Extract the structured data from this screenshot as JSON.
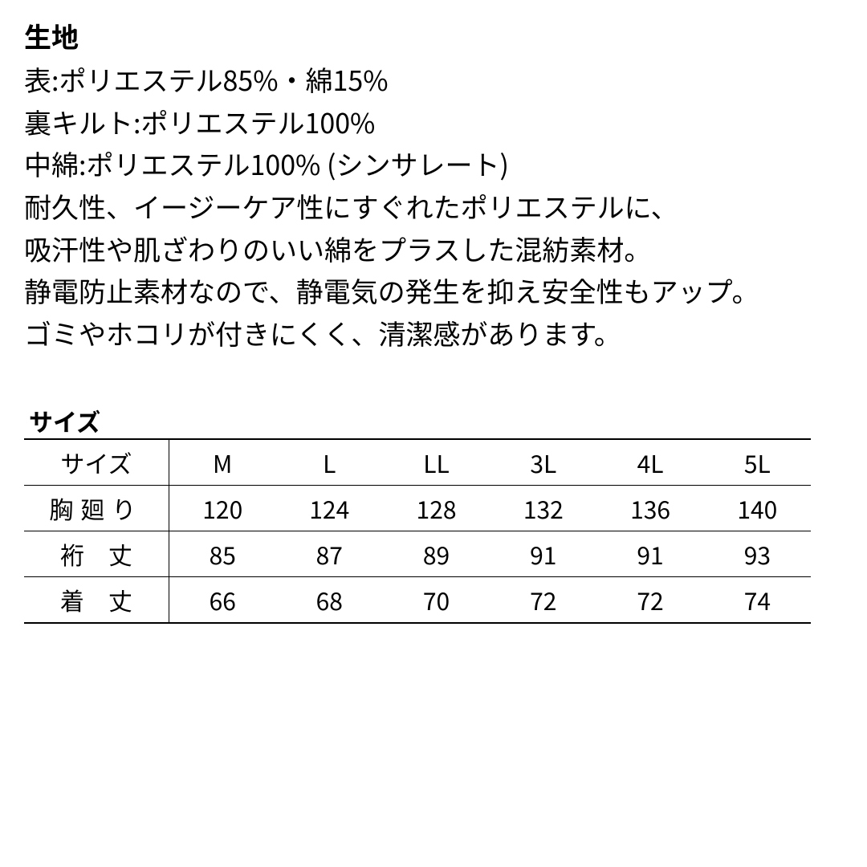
{
  "fabric": {
    "title": "生地",
    "lines": [
      "表:ポリエステル85%・綿15%",
      "裏キルト:ポリエステル100%",
      "中綿:ポリエステル100% (シンサレート)",
      "耐久性、イージーケア性にすぐれたポリエステルに、",
      "吸汗性や肌ざわりのいい綿をプラスした混紡素材。",
      "静電防止素材なので、静電気の発生を抑え安全性もアップ。",
      "ゴミやホコリが付きにくく、清潔感があります。"
    ]
  },
  "size": {
    "title": "サイズ",
    "table": {
      "columns": [
        "サイズ",
        "M",
        "L",
        "LL",
        "3L",
        "4L",
        "5L"
      ],
      "rows": [
        {
          "label": "胸廻り",
          "values": [
            "120",
            "124",
            "128",
            "132",
            "136",
            "140"
          ]
        },
        {
          "label": "裄　丈",
          "values": [
            "85",
            "87",
            "89",
            "91",
            "91",
            "93"
          ]
        },
        {
          "label": "着　丈",
          "values": [
            "66",
            "68",
            "70",
            "72",
            "72",
            "74"
          ]
        }
      ]
    }
  },
  "styling": {
    "background_color": "#ffffff",
    "text_color": "#000000",
    "border_color": "#000000",
    "title_fontsize": 34,
    "body_fontsize": 34,
    "table_title_fontsize": 30,
    "table_fontsize": 30,
    "title_fontweight": 700,
    "body_fontweight": 400
  }
}
